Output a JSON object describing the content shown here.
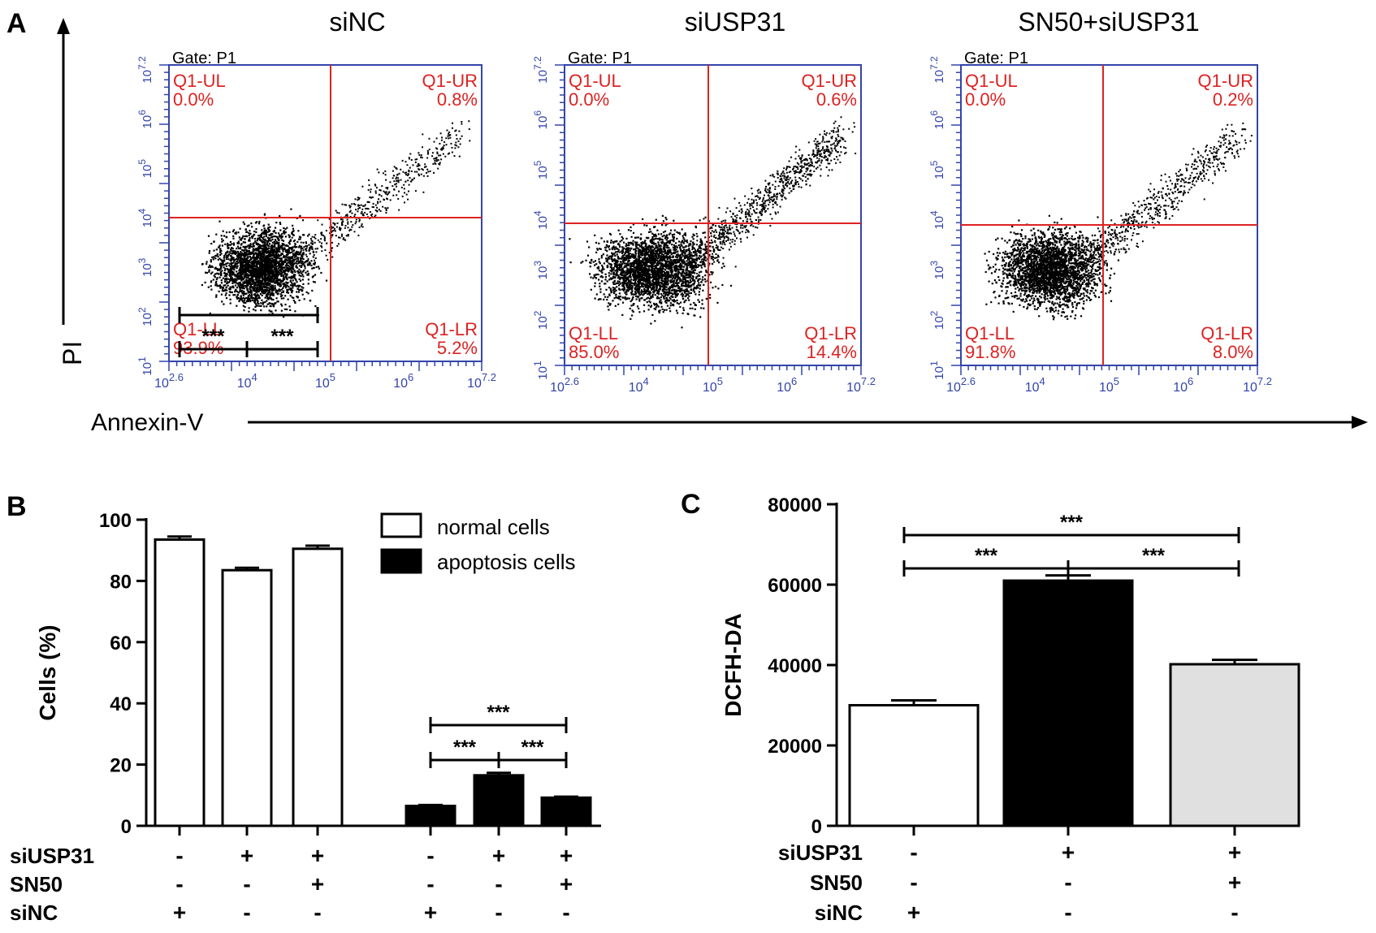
{
  "panel_labels": {
    "a": "A",
    "b": "B",
    "c": "C"
  },
  "panel_a": {
    "y_axis_label": "PI",
    "x_axis_label": "Annexin-V",
    "plots": [
      {
        "title": "siNC",
        "gate": "Gate: P1",
        "q_labels": [
          "Q1-UL",
          "Q1-UR",
          "Q1-LL",
          "Q1-LR"
        ],
        "q_values": [
          "0.0%",
          "0.8%",
          "93.9%",
          "5.2%"
        ]
      },
      {
        "title": "siUSP31",
        "gate": "Gate: P1",
        "q_labels": [
          "Q1-UL",
          "Q1-UR",
          "Q1-LL",
          "Q1-LR"
        ],
        "q_values": [
          "0.0%",
          "0.6%",
          "85.0%",
          "14.4%"
        ]
      },
      {
        "title": "SN50+siUSP31",
        "gate": "Gate: P1",
        "q_labels": [
          "Q1-UL",
          "Q1-UR",
          "Q1-LL",
          "Q1-LR"
        ],
        "q_values": [
          "0.0%",
          "0.2%",
          "91.8%",
          "8.0%"
        ]
      }
    ],
    "x_ticks": [
      "10^2.6",
      "10^4",
      "10^5",
      "10^6",
      "10^7.2"
    ],
    "y_ticks": [
      "10^1",
      "10^2",
      "10^3",
      "10^4",
      "10^5",
      "10^6",
      "10^7.2"
    ]
  },
  "chart_data": [
    {
      "type": "bar",
      "panel": "B",
      "ylabel": "Cells (%)",
      "ylim": [
        0,
        100
      ],
      "yticks": [
        "0",
        "20",
        "40",
        "60",
        "80",
        "100"
      ],
      "legend": [
        "normal cells",
        "apoptosis cells"
      ],
      "series": [
        {
          "name": "normal cells",
          "values": [
            93.5,
            83.5,
            90.5
          ],
          "errors": [
            1.0,
            0.8,
            1.0
          ]
        },
        {
          "name": "apoptosis cells",
          "values": [
            6.5,
            16.5,
            9.2
          ],
          "errors": [
            0.3,
            0.8,
            0.3
          ]
        }
      ],
      "conditions": {
        "rows": [
          "siUSP31",
          "SN50",
          "siNC"
        ],
        "values": [
          [
            "-",
            "+",
            "+"
          ],
          [
            "-",
            "-",
            "+"
          ],
          [
            "+",
            "-",
            "-"
          ]
        ]
      },
      "significance": "***"
    },
    {
      "type": "bar",
      "panel": "C",
      "ylabel": "DCFH-DA",
      "ylim": [
        0,
        80000
      ],
      "yticks": [
        "0",
        "20000",
        "40000",
        "60000",
        "80000"
      ],
      "values": [
        30000,
        61000,
        40200
      ],
      "errors": [
        1200,
        1300,
        1100
      ],
      "colors": [
        "#ffffff",
        "#000000",
        "#e0e0e0"
      ],
      "conditions": {
        "rows": [
          "siUSP31",
          "SN50",
          "siNC"
        ],
        "values": [
          [
            "-",
            "+",
            "+"
          ],
          [
            "-",
            "-",
            "+"
          ],
          [
            "+",
            "-",
            "-"
          ]
        ]
      },
      "significance": "***"
    }
  ]
}
